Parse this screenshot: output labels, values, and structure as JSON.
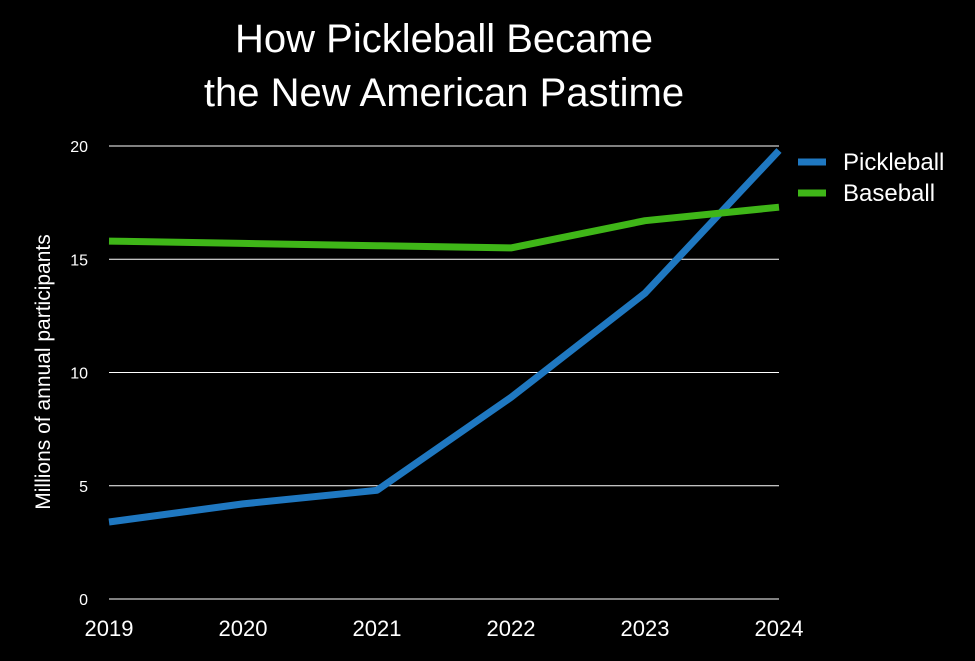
{
  "chart_data": {
    "type": "line",
    "title_lines": [
      "How Pickleball Became",
      "the New American Pastime"
    ],
    "xlabel": "",
    "ylabel": "Millions of annual participants",
    "x": [
      "2019",
      "2020",
      "2021",
      "2022",
      "2023",
      "2024"
    ],
    "ylim": [
      0,
      20
    ],
    "yticks": [
      "0",
      "5",
      "10",
      "15",
      "20"
    ],
    "grid": true,
    "legend_position": "top-right",
    "background": "#000000",
    "series": [
      {
        "name": "Pickleball",
        "color": "#1f78c1",
        "values": [
          3.4,
          4.2,
          4.8,
          8.9,
          13.5,
          19.8
        ]
      },
      {
        "name": "Baseball",
        "color": "#3fb618",
        "values": [
          15.8,
          15.7,
          15.6,
          15.5,
          16.7,
          17.3
        ]
      }
    ]
  }
}
